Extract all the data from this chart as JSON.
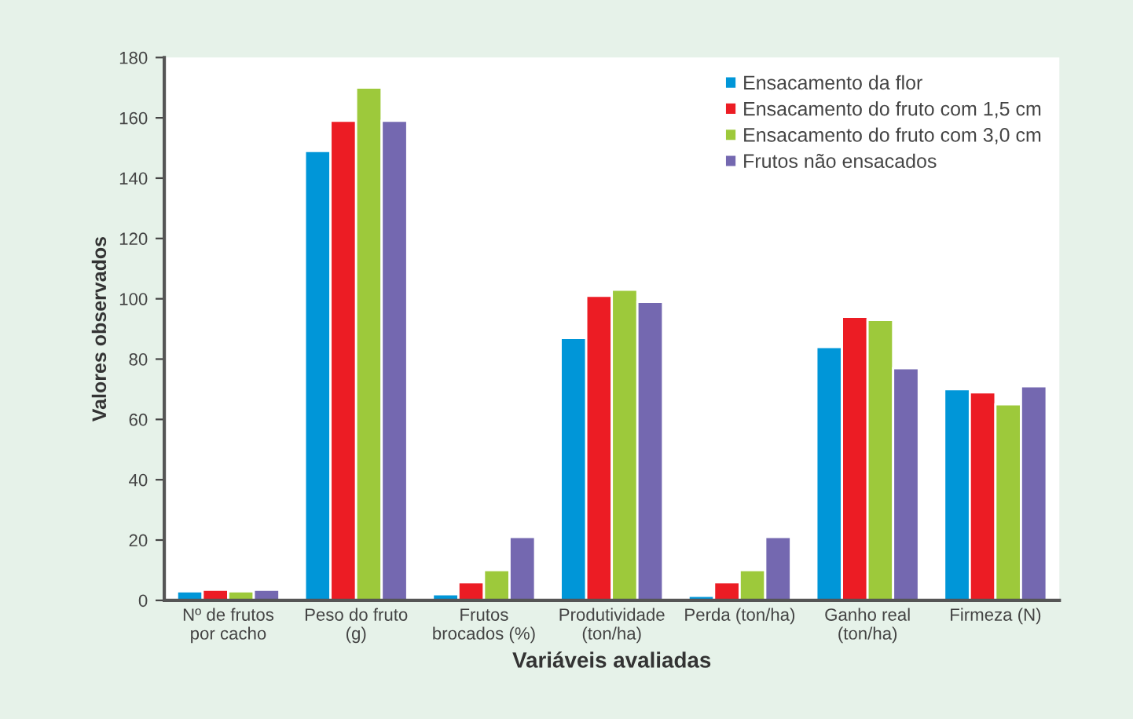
{
  "chart_data": {
    "type": "bar",
    "xlabel": "Variáveis avaliadas",
    "ylabel": "Valores observados",
    "categories": [
      "Nº de frutos\npor cacho",
      "Peso do fruto\n(g)",
      "Frutos\nbrocados (%)",
      "Produtividade\n(ton/ha)",
      "Perda (ton/ha)",
      "Ganho real\n(ton/ha)",
      "Firmeza (N)"
    ],
    "series": [
      {
        "name": "Ensacamento da flor",
        "color": "#0096d8",
        "values": [
          3,
          149,
          2,
          87,
          1.5,
          84,
          70
        ]
      },
      {
        "name": "Ensacamento do fruto com 1,5 cm",
        "color": "#ec1c24",
        "values": [
          3.5,
          159,
          6,
          101,
          6,
          94,
          69
        ]
      },
      {
        "name": "Ensacamento do fruto com 3,0 cm",
        "color": "#9dc93b",
        "values": [
          3,
          170,
          10,
          103,
          10,
          93,
          65
        ]
      },
      {
        "name": "Frutos não ensacados",
        "color": "#7468b0",
        "values": [
          3.5,
          159,
          21,
          99,
          21,
          77,
          71
        ]
      }
    ],
    "ylim": [
      0,
      180
    ],
    "yticks": [
      0,
      20,
      40,
      60,
      80,
      100,
      120,
      140,
      160,
      180
    ],
    "grid": false,
    "legend": "top right"
  }
}
